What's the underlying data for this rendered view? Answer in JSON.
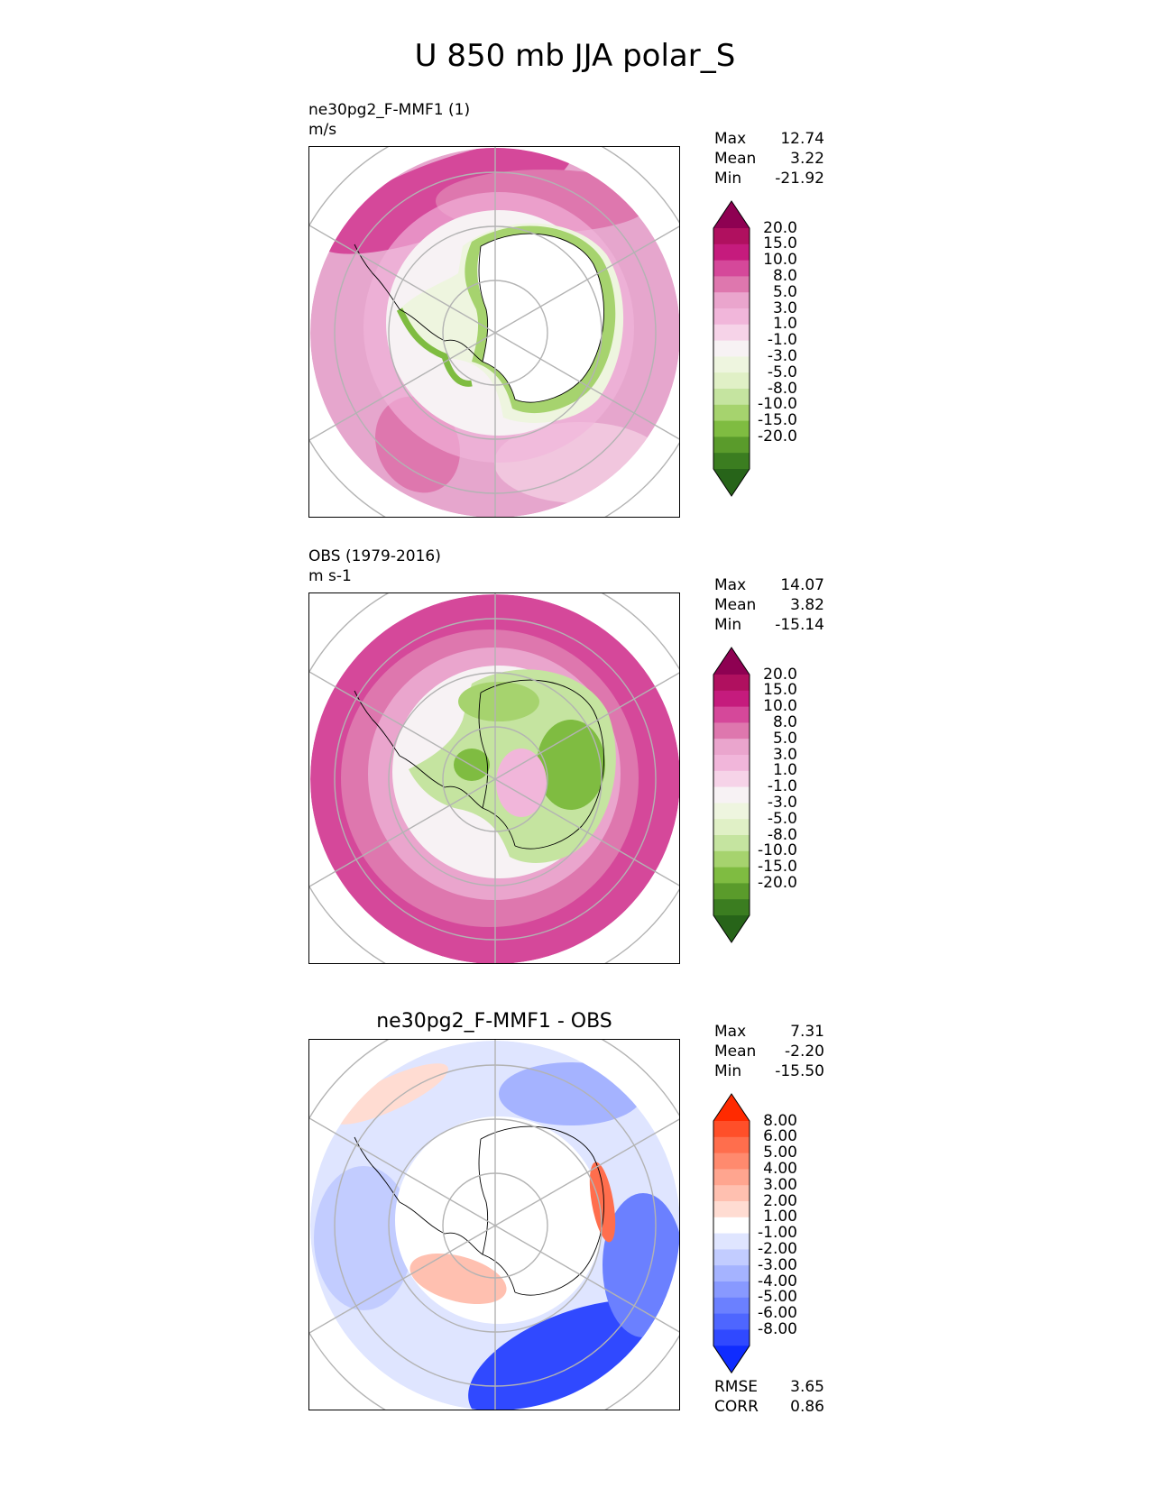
{
  "title": "U 850 mb JJA polar_S",
  "stat_labels": {
    "max": "Max",
    "mean": "Mean",
    "min": "Min",
    "rmse": "RMSE",
    "corr": "CORR"
  },
  "panels": [
    {
      "id": "test",
      "name": "ne30pg2_F-MMF1 (1)",
      "units": "m/s",
      "center_title": "",
      "stats": {
        "max": "12.74",
        "mean": "3.22",
        "min": "-21.92"
      }
    },
    {
      "id": "ref",
      "name": "OBS (1979-2016)",
      "units": "m s-1",
      "center_title": "",
      "stats": {
        "max": "14.07",
        "mean": "3.82",
        "min": "-15.14"
      }
    },
    {
      "id": "diff",
      "name": "",
      "units": "",
      "center_title": "ne30pg2_F-MMF1 - OBS",
      "stats": {
        "max": "7.31",
        "mean": "-2.20",
        "min": "-15.50"
      },
      "metrics": {
        "rmse": "3.65",
        "corr": "0.86"
      }
    }
  ],
  "colorbars": {
    "main": {
      "levels": [
        "20.0",
        "15.0",
        "10.0",
        "8.0",
        "5.0",
        "3.0",
        "1.0",
        "-1.0",
        "-3.0",
        "-5.0",
        "-8.0",
        "-10.0",
        "-15.0",
        "-20.0"
      ],
      "colors": [
        "#8e0152",
        "#b0105f",
        "#c51b7d",
        "#d5489a",
        "#de77ae",
        "#eaa5cd",
        "#f1b6da",
        "#f6d3e8",
        "#f7f2f4",
        "#eef5df",
        "#e0f0c6",
        "#c5e4a0",
        "#a6d36e",
        "#7fbc41",
        "#5a9b2b",
        "#3b7d20",
        "#276419"
      ]
    },
    "diff": {
      "levels": [
        "8.00",
        "6.00",
        "5.00",
        "4.00",
        "3.00",
        "2.00",
        "1.00",
        "-1.00",
        "-2.00",
        "-3.00",
        "-4.00",
        "-5.00",
        "-6.00",
        "-8.00"
      ],
      "colors": [
        "#ff2a00",
        "#ff4f29",
        "#ff6e4d",
        "#ff8a6e",
        "#ffa58f",
        "#ffc0b0",
        "#ffdcd2",
        "#ffffff",
        "#dfe5ff",
        "#c2ccff",
        "#a5b3ff",
        "#8899ff",
        "#6b80ff",
        "#4e66ff",
        "#3049ff",
        "#0f2cff"
      ]
    }
  },
  "chart_data": [
    {
      "type": "heatmap",
      "projection": "south polar stereographic",
      "title": "ne30pg2_F-MMF1 (1)",
      "units": "m/s",
      "variable": "U 850 mb JJA polar_S",
      "colorbar_levels": [
        20.0,
        15.0,
        10.0,
        8.0,
        5.0,
        3.0,
        1.0,
        -1.0,
        -3.0,
        -5.0,
        -8.0,
        -10.0,
        -15.0,
        -20.0
      ],
      "max": 12.74,
      "mean": 3.22,
      "min": -21.92
    },
    {
      "type": "heatmap",
      "projection": "south polar stereographic",
      "title": "OBS (1979-2016)",
      "units": "m s-1",
      "variable": "U 850 mb JJA polar_S",
      "colorbar_levels": [
        20.0,
        15.0,
        10.0,
        8.0,
        5.0,
        3.0,
        1.0,
        -1.0,
        -3.0,
        -5.0,
        -8.0,
        -10.0,
        -15.0,
        -20.0
      ],
      "max": 14.07,
      "mean": 3.82,
      "min": -15.14
    },
    {
      "type": "heatmap",
      "projection": "south polar stereographic",
      "title": "ne30pg2_F-MMF1 - OBS",
      "colorbar_levels": [
        8.0,
        6.0,
        5.0,
        4.0,
        3.0,
        2.0,
        1.0,
        -1.0,
        -2.0,
        -3.0,
        -4.0,
        -5.0,
        -6.0,
        -8.0
      ],
      "max": 7.31,
      "mean": -2.2,
      "min": -15.5,
      "rmse": 3.65,
      "corr": 0.86
    }
  ]
}
